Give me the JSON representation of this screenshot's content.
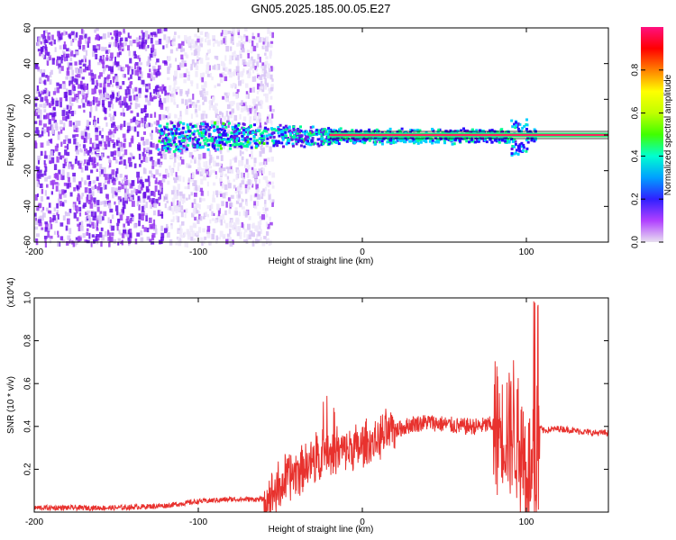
{
  "title": "GN05.2025.185.00.05.E27",
  "colors": {
    "snr_line": "#e8322e",
    "frame": "#000000",
    "colormap": [
      "#f4f0fb",
      "#d7c2f4",
      "#9a3cf0",
      "#6a1ce6",
      "#2a0cff",
      "#00d0ff",
      "#00ff90",
      "#40ff00",
      "#ffff00",
      "#ff8000",
      "#ff0000",
      "#ff2a6a"
    ]
  },
  "chart_data": [
    {
      "type": "heatmap",
      "title": "GN05.2025.185.00.05.E27",
      "xlabel": "Height of straight line (km)",
      "ylabel": "Frequency (Hz)",
      "xlim": [
        -200,
        150
      ],
      "ylim": [
        -60,
        60
      ],
      "x_ticks": [
        "-200",
        "-100",
        "0",
        "100"
      ],
      "x_tick_values": [
        -200,
        -100,
        0,
        100
      ],
      "y_ticks": [
        "-60",
        "-40",
        "-20",
        "0",
        "20",
        "40",
        "60"
      ],
      "y_tick_values": [
        -60,
        -40,
        -20,
        0,
        20,
        40,
        60
      ],
      "colorbar": {
        "label": "Normalized spectral amplitude",
        "range": [
          0,
          1
        ],
        "ticks": [
          "0.0",
          "0.2",
          "0.4",
          "0.6",
          "0.8"
        ],
        "tick_values": [
          0.0,
          0.2,
          0.4,
          0.6,
          0.8
        ]
      },
      "features": {
        "diffuse_noise_x_range": [
          -200,
          -55
        ],
        "band_center_hz": 0,
        "band_x_range": [
          -125,
          105
        ],
        "strong_line_x_range": [
          -20,
          150
        ],
        "line_amplitude": 0.95,
        "burst_x": 95,
        "burst_hz_range": [
          -10,
          12
        ]
      }
    },
    {
      "type": "line",
      "xlabel": "Height of straight line (km)",
      "ylabel": "SNR (10 * v/v)",
      "y_multiplier": "(x10^4)",
      "xlim": [
        -200,
        150
      ],
      "ylim": [
        0,
        1.0
      ],
      "x_ticks": [
        "-200",
        "-100",
        "0",
        "100"
      ],
      "x_tick_values": [
        -200,
        -100,
        0,
        100
      ],
      "y_ticks": [
        "0.2",
        "0.4",
        "0.6",
        "0.8",
        "1.0"
      ],
      "y_tick_values": [
        0.2,
        0.4,
        0.6,
        0.8,
        1.0
      ],
      "series": [
        {
          "x": [
            -200,
            -150,
            -120,
            -100,
            -80,
            -60,
            -50,
            -40,
            -30,
            -20,
            -10,
            0,
            10,
            20,
            30,
            40,
            50,
            60,
            70,
            80,
            85,
            90,
            95,
            100,
            105,
            108,
            110,
            120,
            130,
            140,
            150
          ],
          "y": [
            0.02,
            0.02,
            0.03,
            0.05,
            0.06,
            0.06,
            0.12,
            0.2,
            0.24,
            0.27,
            0.29,
            0.3,
            0.34,
            0.38,
            0.41,
            0.42,
            0.41,
            0.4,
            0.4,
            0.41,
            0.39,
            0.4,
            0.35,
            0.2,
            0.15,
            0.4,
            0.38,
            0.39,
            0.38,
            0.37,
            0.37
          ]
        }
      ]
    }
  ]
}
